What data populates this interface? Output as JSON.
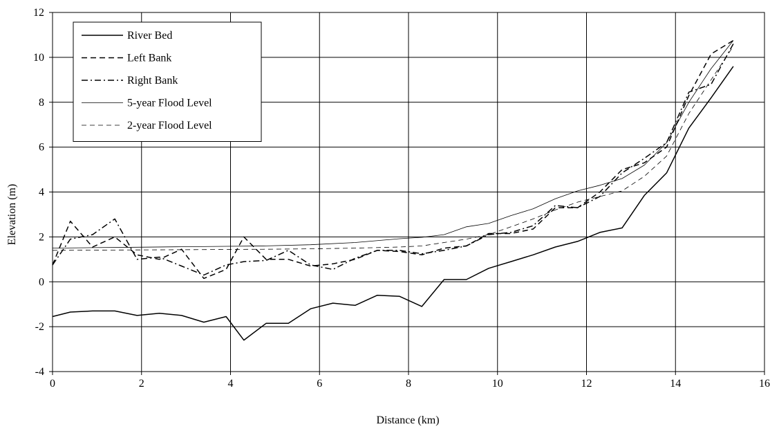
{
  "chart_data": {
    "type": "line",
    "xlabel": "Distance (km)",
    "ylabel": "Elevation (m)",
    "xlim": [
      0,
      16
    ],
    "ylim": [
      -4,
      12
    ],
    "xticks": [
      0,
      2,
      4,
      6,
      8,
      10,
      12,
      14,
      16
    ],
    "yticks": [
      -4,
      -2,
      0,
      2,
      4,
      6,
      8,
      10,
      12
    ],
    "grid": true,
    "legend_position": "top-left",
    "series": [
      {
        "name": "River Bed",
        "style": "solid-thick",
        "color": "#000000",
        "x": [
          0,
          0.4,
          0.9,
          1.4,
          1.9,
          2.4,
          2.9,
          3.4,
          3.9,
          4.3,
          4.8,
          5.3,
          5.8,
          6.3,
          6.8,
          7.3,
          7.8,
          8.3,
          8.8,
          9.3,
          9.8,
          10.3,
          10.8,
          11.3,
          11.8,
          12.3,
          12.8,
          13.3,
          13.8,
          14.3,
          14.8,
          15.3
        ],
        "y": [
          -1.55,
          -1.35,
          -1.3,
          -1.3,
          -1.5,
          -1.4,
          -1.5,
          -1.8,
          -1.55,
          -2.6,
          -1.85,
          -1.85,
          -1.2,
          -0.95,
          -1.05,
          -0.6,
          -0.65,
          -1.1,
          0.1,
          0.1,
          0.6,
          0.9,
          1.2,
          1.55,
          1.8,
          2.2,
          2.4,
          3.85,
          4.85,
          6.85,
          8.2,
          9.6
        ]
      },
      {
        "name": "Left Bank",
        "style": "dashed-thick",
        "color": "#000000",
        "x": [
          0,
          0.4,
          0.9,
          1.4,
          1.9,
          2.4,
          2.9,
          3.4,
          3.9,
          4.3,
          4.8,
          5.3,
          5.8,
          6.3,
          6.8,
          7.3,
          7.8,
          8.3,
          8.8,
          9.3,
          9.8,
          10.3,
          10.8,
          11.3,
          11.8,
          12.3,
          12.8,
          13.3,
          13.8,
          14.3,
          14.8,
          15.3
        ],
        "y": [
          0.75,
          2.7,
          1.55,
          2.0,
          1.2,
          1.0,
          1.45,
          0.15,
          0.55,
          2.0,
          1.0,
          1.0,
          0.7,
          0.8,
          1.0,
          1.4,
          1.35,
          1.2,
          1.5,
          1.6,
          2.15,
          2.15,
          2.35,
          3.3,
          3.3,
          4.0,
          5.0,
          5.3,
          6.0,
          8.3,
          10.15,
          10.75
        ]
      },
      {
        "name": "Right Bank",
        "style": "dashdot-thick",
        "color": "#000000",
        "x": [
          0,
          0.4,
          0.9,
          1.4,
          1.9,
          2.4,
          2.9,
          3.4,
          3.9,
          4.3,
          4.8,
          5.3,
          5.8,
          6.3,
          6.8,
          7.3,
          7.8,
          8.3,
          8.8,
          9.3,
          9.8,
          10.3,
          10.8,
          11.3,
          11.8,
          12.3,
          12.8,
          13.3,
          13.8,
          14.3,
          14.8,
          15.3
        ],
        "y": [
          0.75,
          1.9,
          2.1,
          2.8,
          1.0,
          1.1,
          0.7,
          0.3,
          0.75,
          0.9,
          0.95,
          1.4,
          0.75,
          0.55,
          1.05,
          1.4,
          1.4,
          1.25,
          1.4,
          1.6,
          2.1,
          2.2,
          2.5,
          3.4,
          3.3,
          3.8,
          4.85,
          5.5,
          6.2,
          8.45,
          8.8,
          10.6
        ]
      },
      {
        "name": "5-year Flood Level",
        "style": "solid-thin",
        "color": "#000000",
        "x": [
          0,
          0.9,
          1.9,
          2.9,
          3.9,
          4.8,
          5.8,
          6.8,
          7.8,
          8.3,
          8.8,
          9.3,
          9.8,
          10.3,
          10.8,
          11.3,
          11.8,
          12.3,
          12.8,
          13.3,
          13.8,
          14.3,
          14.8,
          15.3
        ],
        "y": [
          1.5,
          1.52,
          1.54,
          1.56,
          1.58,
          1.6,
          1.65,
          1.75,
          1.92,
          1.98,
          2.1,
          2.45,
          2.6,
          2.95,
          3.25,
          3.7,
          4.05,
          4.3,
          4.6,
          5.2,
          6.2,
          8.0,
          9.5,
          10.75
        ]
      },
      {
        "name": "2-year Flood Level",
        "style": "dashed-thin",
        "color": "#000000",
        "x": [
          0,
          0.9,
          1.9,
          2.9,
          3.9,
          4.8,
          5.8,
          6.8,
          7.8,
          8.3,
          8.8,
          9.3,
          9.8,
          10.3,
          10.8,
          11.3,
          11.8,
          12.3,
          12.8,
          13.3,
          13.8,
          14.3,
          14.8,
          15.3
        ],
        "y": [
          1.4,
          1.41,
          1.42,
          1.43,
          1.44,
          1.45,
          1.47,
          1.5,
          1.55,
          1.6,
          1.75,
          1.9,
          2.1,
          2.45,
          2.8,
          3.2,
          3.55,
          3.8,
          4.05,
          4.7,
          5.6,
          7.5,
          9.0,
          10.5
        ]
      }
    ]
  }
}
